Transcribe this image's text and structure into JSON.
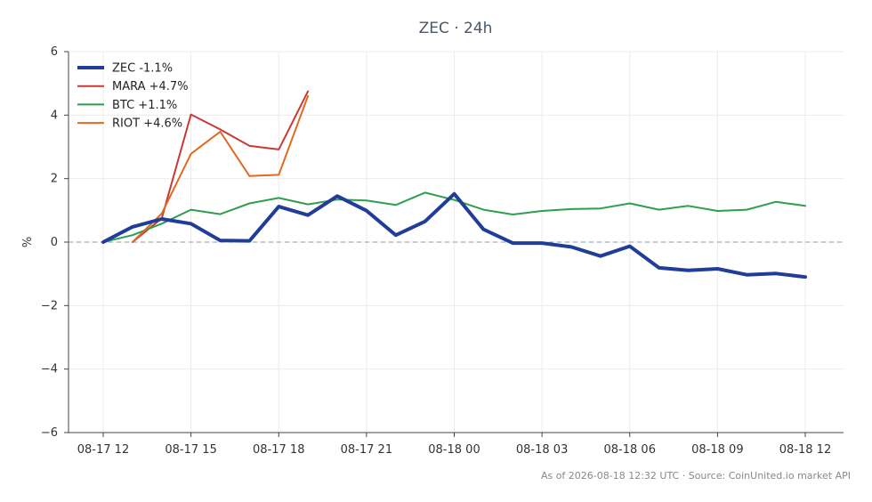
{
  "chart_data": {
    "type": "line",
    "title": "ZEC · 24h",
    "ylabel": "%",
    "xlabel": "",
    "x": [
      "08-17 12",
      "08-17 13",
      "08-17 14",
      "08-17 15",
      "08-17 16",
      "08-17 17",
      "08-17 18",
      "08-17 19",
      "08-17 20",
      "08-17 21",
      "08-17 22",
      "08-17 23",
      "08-18 00",
      "08-18 01",
      "08-18 02",
      "08-18 03",
      "08-18 04",
      "08-18 05",
      "08-18 06",
      "08-18 07",
      "08-18 08",
      "08-18 09",
      "08-18 10",
      "08-18 11",
      "08-18 12"
    ],
    "x_ticks": [
      "08-17 12",
      "08-17 15",
      "08-17 18",
      "08-17 21",
      "08-18 00",
      "08-18 03",
      "08-18 06",
      "08-18 09",
      "08-18 12"
    ],
    "ylim": [
      -6,
      6
    ],
    "y_ticks": [
      "6",
      "4",
      "2",
      "0",
      "−2",
      "−4",
      "−6"
    ],
    "y_tick_values": [
      6,
      4,
      2,
      0,
      -2,
      -4,
      -6
    ],
    "zero_line": true,
    "grid": true,
    "legend_position": "top-left",
    "series": [
      {
        "name": "ZEC -1.1%",
        "color": "#1f3d99",
        "width": 4,
        "values": [
          0.0,
          0.48,
          0.73,
          0.58,
          0.05,
          0.04,
          1.12,
          0.85,
          1.45,
          0.99,
          0.22,
          0.65,
          1.52,
          0.4,
          -0.03,
          -0.03,
          -0.15,
          -0.44,
          -0.13,
          -0.81,
          -0.89,
          -0.84,
          -1.03,
          -0.99,
          -1.1
        ]
      },
      {
        "name": "MARA +4.7%",
        "color": "#c93a35",
        "width": 2,
        "values": [
          null,
          0.0,
          0.75,
          4.02,
          3.55,
          3.03,
          2.92,
          4.75,
          null,
          null,
          null,
          null,
          null,
          null,
          null,
          null,
          null,
          null,
          null,
          null,
          null,
          null,
          null,
          null,
          null
        ]
      },
      {
        "name": "BTC +1.1%",
        "color": "#2e9e4f",
        "width": 2,
        "values": [
          0.0,
          0.22,
          0.58,
          1.02,
          0.88,
          1.22,
          1.39,
          1.19,
          1.34,
          1.31,
          1.17,
          1.56,
          1.33,
          1.02,
          0.87,
          0.98,
          1.04,
          1.06,
          1.22,
          1.02,
          1.14,
          0.98,
          1.02,
          1.27,
          1.14
        ]
      },
      {
        "name": "RIOT +4.6%",
        "color": "#e06a1f",
        "width": 2,
        "values": [
          null,
          0.0,
          0.9,
          2.78,
          3.48,
          2.08,
          2.12,
          4.6,
          null,
          null,
          null,
          null,
          null,
          null,
          null,
          null,
          null,
          null,
          null,
          null,
          null,
          null,
          null,
          null,
          null
        ]
      }
    ],
    "footer": "As of 2026-08-18 12:32 UTC · Source: CoinUnited.io market API"
  }
}
